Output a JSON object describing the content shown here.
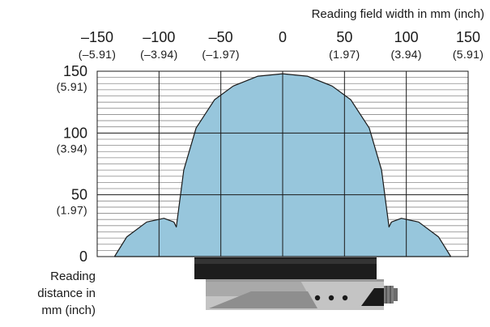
{
  "chart_data": {
    "type": "area",
    "title": "",
    "xlabel": "Reading field width in mm (inch)",
    "ylabel_lines": [
      "Reading",
      "distance in",
      "mm (inch)"
    ],
    "xlim": [
      -150,
      150
    ],
    "ylim": [
      0,
      150
    ],
    "x_ticks": [
      {
        "value": -150,
        "mm": "–150",
        "inch": "(–5.91)"
      },
      {
        "value": -100,
        "mm": "–100",
        "inch": "(–3.94)"
      },
      {
        "value": -50,
        "mm": "–50",
        "inch": "(–1.97)"
      },
      {
        "value": 0,
        "mm": "0",
        "inch": ""
      },
      {
        "value": 50,
        "mm": "50",
        "inch": "(1.97)"
      },
      {
        "value": 100,
        "mm": "100",
        "inch": "(3.94)"
      },
      {
        "value": 150,
        "mm": "150",
        "inch": "(5.91)"
      }
    ],
    "y_ticks": [
      {
        "value": 150,
        "mm": "150",
        "inch": "(5.91)"
      },
      {
        "value": 100,
        "mm": "100",
        "inch": "(3.94)"
      },
      {
        "value": 50,
        "mm": "50",
        "inch": "(1.97)"
      },
      {
        "value": 0,
        "mm": "0",
        "inch": ""
      }
    ],
    "grid": {
      "major_step_x": 50,
      "major_step_y": 50,
      "minor_step_y": 5
    },
    "series": [
      {
        "x": [
          -136,
          -126,
          -110,
          -96,
          -88,
          -86,
          -80,
          -70,
          -55,
          -40,
          -20,
          0,
          20,
          40,
          55,
          70,
          80,
          86,
          88,
          96,
          110,
          126,
          136
        ],
        "y": [
          0,
          16,
          28,
          31,
          28,
          24,
          70,
          104,
          127,
          138,
          146,
          148,
          146,
          138,
          127,
          104,
          70,
          24,
          28,
          31,
          28,
          16,
          0
        ]
      }
    ],
    "colors": {
      "fill": "#97c6dc",
      "stroke": "#1a1a1a",
      "grid": "#1a1a1a"
    }
  }
}
